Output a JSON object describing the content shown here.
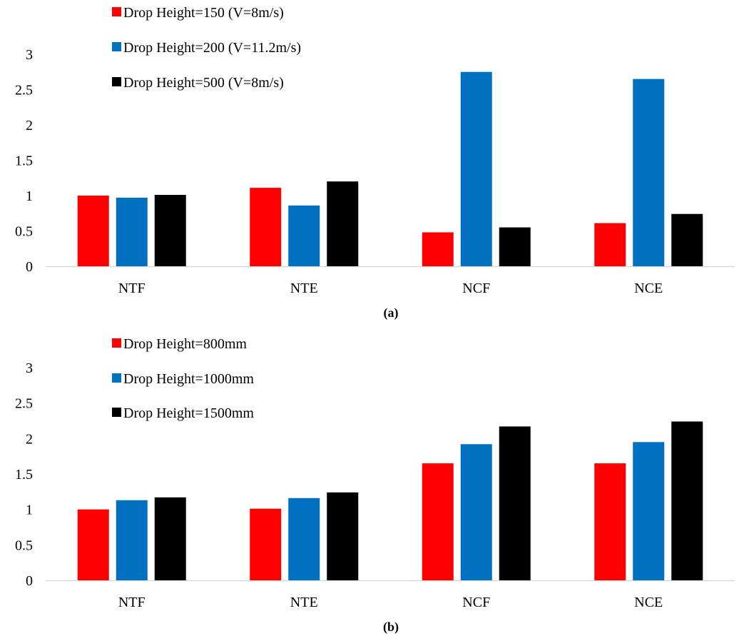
{
  "chart_data": [
    {
      "type": "bar",
      "caption": "(a)",
      "categories": [
        "NTF",
        "NTE",
        "NCF",
        "NCE"
      ],
      "series": [
        {
          "name": "Drop Height=150 (V=8m/s)",
          "values": [
            1.0,
            1.11,
            0.48,
            0.61
          ],
          "color": "#ff0000"
        },
        {
          "name": "Drop Height=200 (V=11.2m/s)",
          "values": [
            0.97,
            0.86,
            2.75,
            2.65
          ],
          "color": "#0070c0"
        },
        {
          "name": "Drop Height=500 (V=8m/s)",
          "values": [
            1.01,
            1.2,
            0.55,
            0.74
          ],
          "color": "#000000"
        }
      ],
      "yticks": [
        "0",
        "0.5",
        "1",
        "1.5",
        "2",
        "2.5",
        "3"
      ],
      "ylim": [
        0,
        3
      ],
      "grid": false,
      "legend": "top-left"
    },
    {
      "type": "bar",
      "caption": "(b)",
      "categories": [
        "NTF",
        "NTE",
        "NCF",
        "NCE"
      ],
      "series": [
        {
          "name": "Drop Height=800mm",
          "values": [
            1.0,
            1.01,
            1.65,
            1.65
          ],
          "color": "#ff0000"
        },
        {
          "name": "Drop Height=1000mm",
          "values": [
            1.13,
            1.16,
            1.92,
            1.95
          ],
          "color": "#0070c0"
        },
        {
          "name": "Drop Height=1500mm",
          "values": [
            1.17,
            1.24,
            2.17,
            2.24
          ],
          "color": "#000000"
        }
      ],
      "yticks": [
        "0",
        "0.5",
        "1",
        "1.5",
        "2",
        "2.5",
        "3"
      ],
      "ylim": [
        0,
        3
      ],
      "grid": false,
      "legend": "top-left"
    }
  ]
}
